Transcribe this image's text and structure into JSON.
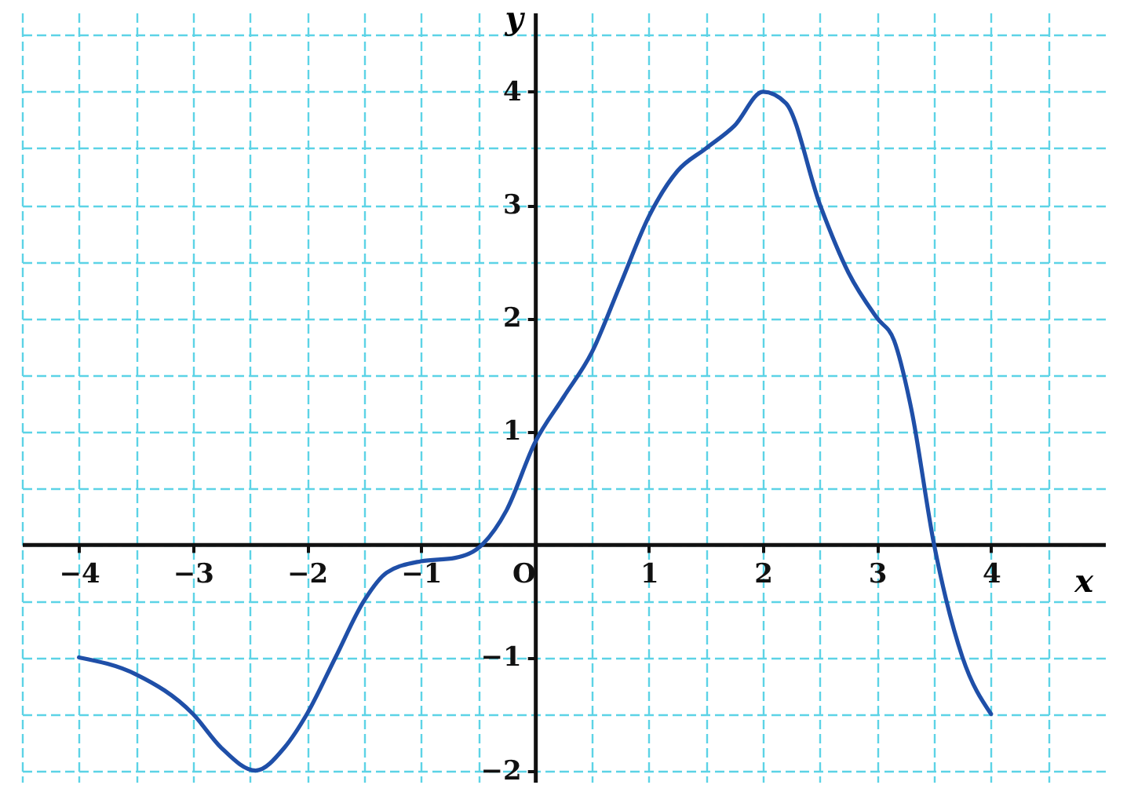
{
  "chart_data": {
    "type": "line",
    "xlabel": "x",
    "ylabel": "y",
    "xlim": [
      -4.5,
      5
    ],
    "ylim": [
      -2.1,
      4.7
    ],
    "xticks": [
      {
        "value": -4.5,
        "label": null
      },
      {
        "value": -4,
        "label": "−4"
      },
      {
        "value": -3.5,
        "label": null
      },
      {
        "value": -3,
        "label": "−3"
      },
      {
        "value": -2.5,
        "label": null
      },
      {
        "value": -2,
        "label": "−2"
      },
      {
        "value": -1.5,
        "label": null
      },
      {
        "value": -1,
        "label": "−1"
      },
      {
        "value": -0.5,
        "label": null
      },
      {
        "value": 0,
        "label": "O"
      },
      {
        "value": 0.5,
        "label": null
      },
      1,
      {
        "value": 1.5,
        "label": null
      },
      2,
      {
        "value": 2.5,
        "label": null
      },
      3,
      {
        "value": 3.5,
        "label": null
      },
      4,
      {
        "value": 4.5,
        "label": null
      }
    ],
    "yticks": [
      {
        "value": -2,
        "label": "−2"
      },
      {
        "value": -1.5,
        "label": null
      },
      {
        "value": -1,
        "label": "−1"
      },
      {
        "value": -0.5,
        "label": null
      },
      {
        "value": 0,
        "label": null
      },
      {
        "value": 0.5,
        "label": null
      },
      1,
      {
        "value": 1.5,
        "label": null
      },
      2,
      {
        "value": 2.5,
        "label": null
      },
      3,
      {
        "value": 3.5,
        "label": null
      },
      4,
      {
        "value": 4.5,
        "label": null
      }
    ],
    "grid": true,
    "marker": "none",
    "line_style": "solid",
    "series": [
      {
        "color": "#1f4fa8",
        "x": [
          -4,
          -3.5,
          -3,
          -2.75,
          -2.45,
          -2.2,
          -2,
          -1.75,
          -1.5,
          -1.3,
          -1,
          -0.7,
          -0.46,
          -0.25,
          0,
          0.25,
          0.5,
          0.75,
          1,
          1.25,
          1.5,
          1.75,
          2,
          2.2,
          2.5,
          2.75,
          3,
          3.15,
          3.3,
          3.5,
          3.75,
          4
        ],
        "values": [
          -1,
          -1.15,
          -1.5,
          -1.8,
          -2,
          -1.8,
          -1.5,
          -1,
          -0.5,
          -0.25,
          -0.15,
          -0.12,
          0,
          0.3,
          0.9,
          1.3,
          1.7,
          2.3,
          2.9,
          3.3,
          3.5,
          3.7,
          4,
          3.9,
          3,
          2.4,
          2,
          1.8,
          1.2,
          0,
          -1,
          -1.5
        ]
      }
    ]
  }
}
